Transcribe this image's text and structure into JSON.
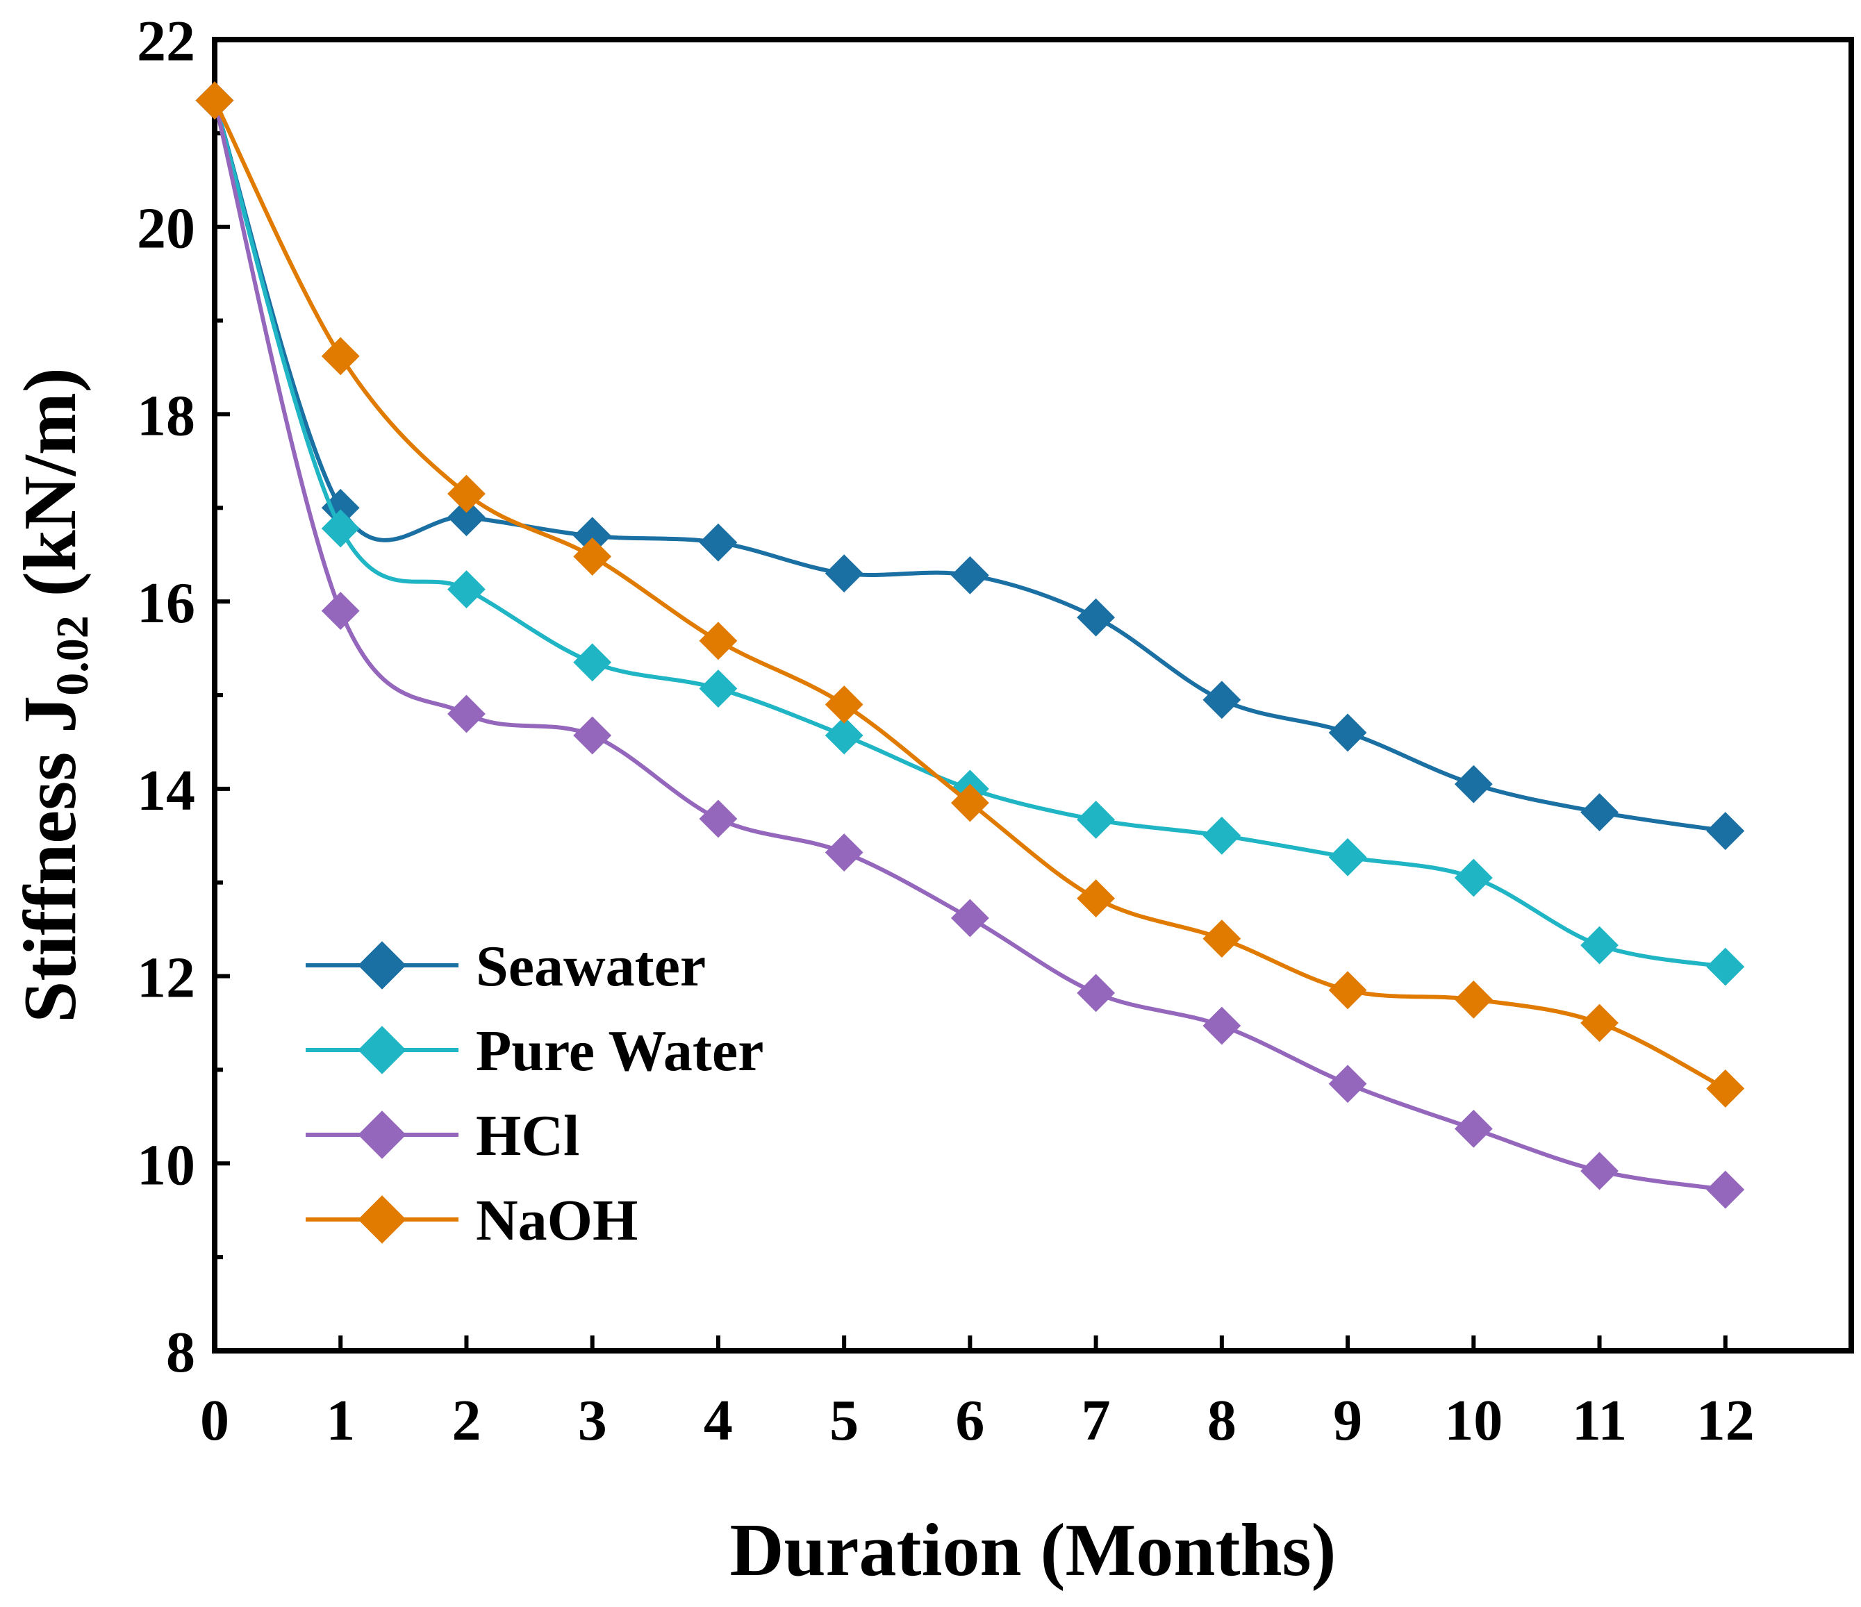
{
  "chart_data": {
    "type": "line",
    "title": "",
    "xlabel": "Duration (Months)",
    "ylabel": {
      "prefix": "Stiffness J",
      "subscript": "0.02",
      "suffix": " (kN/m)"
    },
    "xlim": [
      0,
      13
    ],
    "ylim": [
      8,
      22
    ],
    "x": [
      0,
      1,
      2,
      3,
      4,
      5,
      6,
      7,
      8,
      9,
      10,
      11,
      12
    ],
    "xticks": [
      "0",
      "1",
      "2",
      "3",
      "4",
      "5",
      "6",
      "7",
      "8",
      "9",
      "10",
      "11",
      "12"
    ],
    "yticks": [
      "8",
      "10",
      "12",
      "14",
      "16",
      "18",
      "20",
      "22"
    ],
    "legend_position": "bottom-left",
    "series": [
      {
        "name": "Seawater",
        "color": "#1a6fa3",
        "marker": "diamond",
        "values": [
          21.35,
          17.0,
          16.9,
          16.7,
          16.63,
          16.3,
          16.28,
          15.83,
          14.95,
          14.6,
          14.05,
          13.75,
          13.55
        ]
      },
      {
        "name": "Pure Water",
        "color": "#1fb5c4",
        "marker": "diamond",
        "values": [
          21.35,
          16.78,
          16.13,
          15.35,
          15.07,
          14.57,
          14.0,
          13.67,
          13.5,
          13.27,
          13.05,
          12.33,
          12.1
        ]
      },
      {
        "name": "HCl",
        "color": "#9467bd",
        "marker": "diamond",
        "values": [
          21.35,
          15.9,
          14.8,
          14.57,
          13.68,
          13.32,
          12.62,
          11.82,
          11.47,
          10.85,
          10.37,
          9.92,
          9.72
        ]
      },
      {
        "name": "NaOH",
        "color": "#e07b00",
        "marker": "diamond",
        "values": [
          21.35,
          18.62,
          17.15,
          16.48,
          15.58,
          14.9,
          13.85,
          12.83,
          12.4,
          11.85,
          11.75,
          11.5,
          10.8
        ]
      }
    ]
  }
}
